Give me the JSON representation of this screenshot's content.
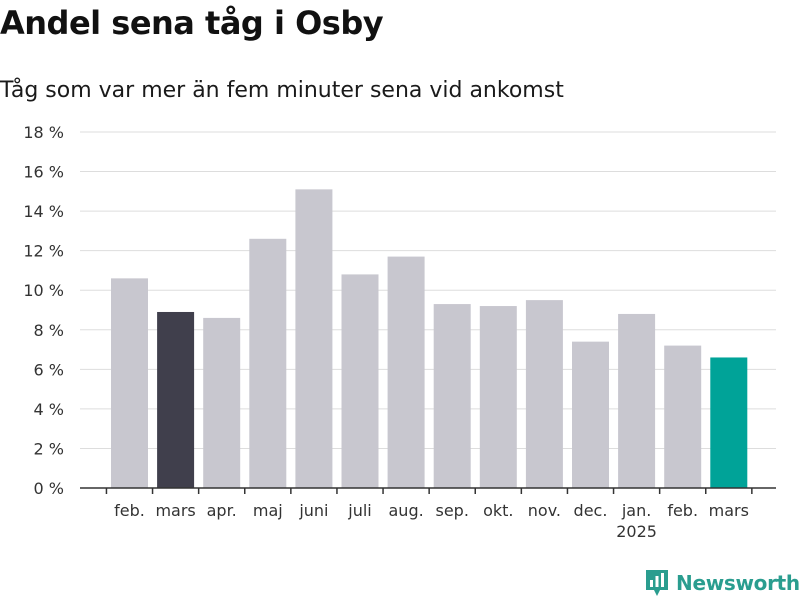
{
  "title": "Andel sena tåg i Osby",
  "subtitle": "Tåg som var mer än fem minuter sena vid ankomst",
  "brand": {
    "name": "Newsworthy",
    "icon": "newsworthy-logo-icon"
  },
  "colors": {
    "bar_default": "#c8c7cf",
    "bar_previous_year": "#403f4c",
    "bar_current": "#00a398",
    "grid": "#dddddd",
    "axis": "#333333",
    "brand": "#2a9d8f"
  },
  "chart_data": {
    "type": "bar",
    "categories": [
      "feb.",
      "mars",
      "apr.",
      "maj",
      "juni",
      "juli",
      "aug.",
      "sep.",
      "okt.",
      "nov.",
      "dec.",
      "jan.",
      "feb.",
      "mars"
    ],
    "year_labels": [
      "",
      "",
      "",
      "",
      "",
      "",
      "",
      "",
      "",
      "",
      "",
      "2025",
      "",
      ""
    ],
    "values": [
      10.6,
      8.9,
      8.6,
      12.6,
      15.1,
      10.8,
      11.7,
      9.3,
      9.2,
      9.5,
      7.4,
      8.8,
      7.2,
      6.6
    ],
    "highlight": [
      "default",
      "previous_year",
      "default",
      "default",
      "default",
      "default",
      "default",
      "default",
      "default",
      "default",
      "default",
      "default",
      "default",
      "current"
    ],
    "y_ticks": [
      "0 %",
      "2 %",
      "4 %",
      "6 %",
      "8 %",
      "10 %",
      "12 %",
      "14 %",
      "16 %",
      "18 %"
    ],
    "ylim": [
      0,
      18
    ],
    "grid": true,
    "legend": "none"
  }
}
